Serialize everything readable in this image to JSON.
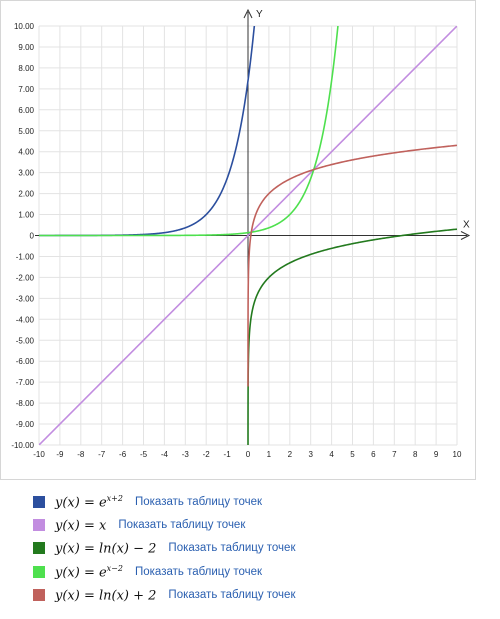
{
  "chart_data": {
    "type": "line",
    "xlabel": "X",
    "ylabel": "Y",
    "xlim": [
      -10,
      10
    ],
    "ylim": [
      -10,
      10
    ],
    "x_ticks": [
      "-10",
      "-9",
      "-8",
      "-7",
      "-6",
      "-5",
      "-4",
      "-3",
      "-2",
      "-1",
      "0",
      "1",
      "2",
      "3",
      "4",
      "5",
      "6",
      "7",
      "8",
      "9",
      "10"
    ],
    "y_ticks": [
      "10.00",
      "9.00",
      "8.00",
      "7.00",
      "6.00",
      "5.00",
      "4.00",
      "3.00",
      "2.00",
      "1.00",
      "0",
      "-1.00",
      "-2.00",
      "-3.00",
      "-4.00",
      "-5.00",
      "-6.00",
      "-7.00",
      "-8.00",
      "-9.00",
      "-10.00"
    ],
    "grid": true,
    "series": [
      {
        "name": "y(x) = e^(x+2)",
        "color": "#2c4f9e",
        "function": "exp_x_plus_2",
        "points": [
          [
            -10,
            0.0003
          ],
          [
            -4,
            0.14
          ],
          [
            -3,
            0.37
          ],
          [
            -2,
            1.0
          ],
          [
            -1,
            2.72
          ],
          [
            0,
            7.39
          ],
          [
            0.3,
            9.97
          ]
        ]
      },
      {
        "name": "y(x) = x",
        "color": "#c28de0",
        "function": "identity",
        "points": [
          [
            -10,
            -10
          ],
          [
            0,
            0
          ],
          [
            10,
            10
          ]
        ]
      },
      {
        "name": "y(x) = ln(x) − 2",
        "color": "#237a1e",
        "function": "ln_x_minus_2",
        "points": [
          [
            0.0001,
            -11.2
          ],
          [
            0.1,
            -4.3
          ],
          [
            1,
            -2
          ],
          [
            2,
            -1.31
          ],
          [
            4,
            -0.61
          ],
          [
            7.39,
            0
          ],
          [
            10,
            0.3
          ]
        ]
      },
      {
        "name": "y(x) = e^(x−2)",
        "color": "#4ee04e",
        "function": "exp_x_minus_2",
        "points": [
          [
            -10,
            1e-05
          ],
          [
            0,
            0.14
          ],
          [
            2,
            1
          ],
          [
            3,
            2.72
          ],
          [
            4,
            7.39
          ],
          [
            4.3,
            9.97
          ]
        ]
      },
      {
        "name": "y(x) = ln(x) + 2",
        "color": "#c0615c",
        "function": "ln_x_plus_2",
        "points": [
          [
            0.0001,
            -7.2
          ],
          [
            0.1,
            -0.3
          ],
          [
            1,
            2
          ],
          [
            3,
            3.1
          ],
          [
            5,
            3.61
          ],
          [
            10,
            4.3
          ]
        ]
      }
    ]
  },
  "legend": [
    {
      "color": "#2c4f9e",
      "formula_base": "y(x) = e",
      "formula_sup": "x+2",
      "link": "Показать таблицу точек"
    },
    {
      "color": "#c28de0",
      "formula_base": "y(x) = x",
      "formula_sup": "",
      "link": "Показать таблицу точек"
    },
    {
      "color": "#237a1e",
      "formula_base": "y(x) = ln(x) − 2",
      "formula_sup": "",
      "link": "Показать таблицу точек"
    },
    {
      "color": "#4ee04e",
      "formula_base": "y(x) = e",
      "formula_sup": "x−2",
      "link": "Показать таблицу точек"
    },
    {
      "color": "#c0615c",
      "formula_base": "y(x) = ln(x) + 2",
      "formula_sup": "",
      "link": "Показать таблицу точек"
    }
  ]
}
